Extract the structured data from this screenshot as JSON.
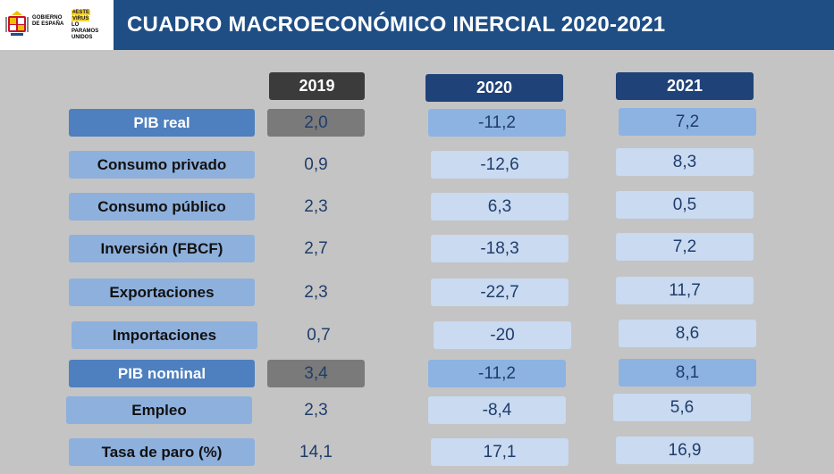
{
  "header": {
    "title": "CUADRO MACROECONÓMICO INERCIAL 2020-2021",
    "gov_label_line1": "GOBIERNO",
    "gov_label_line2": "DE ESPAÑA",
    "campaign_line1": "#ESTE",
    "campaign_line2": "VIRUS",
    "campaign_line3": "LO",
    "campaign_line4": "PARAMOS",
    "campaign_line5": "UNIDOS"
  },
  "years": [
    "2019",
    "2020",
    "2021"
  ],
  "rows": [
    {
      "label": "PIB real",
      "v2019": "2,0",
      "v2020": "-11,2",
      "v2021": "7,2"
    },
    {
      "label": "Consumo privado",
      "v2019": "0,9",
      "v2020": "-12,6",
      "v2021": "8,3"
    },
    {
      "label": "Consumo público",
      "v2019": "2,3",
      "v2020": "6,3",
      "v2021": "0,5"
    },
    {
      "label": "Inversión (FBCF)",
      "v2019": "2,7",
      "v2020": "-18,3",
      "v2021": "7,2"
    },
    {
      "label": "Exportaciones",
      "v2019": "2,3",
      "v2020": "-22,7",
      "v2021": "11,7"
    },
    {
      "label": "Importaciones",
      "v2019": "0,7",
      "v2020": "-20",
      "v2021": "8,6"
    },
    {
      "label": "PIB nominal",
      "v2019": "3,4",
      "v2020": "-11,2",
      "v2021": "8,1"
    },
    {
      "label": "Empleo",
      "v2019": "2,3",
      "v2020": "-8,4",
      "v2021": "5,6"
    },
    {
      "label": "Tasa de paro (%)",
      "v2019": "14,1",
      "v2020": "17,1",
      "v2021": "16,9"
    }
  ]
}
